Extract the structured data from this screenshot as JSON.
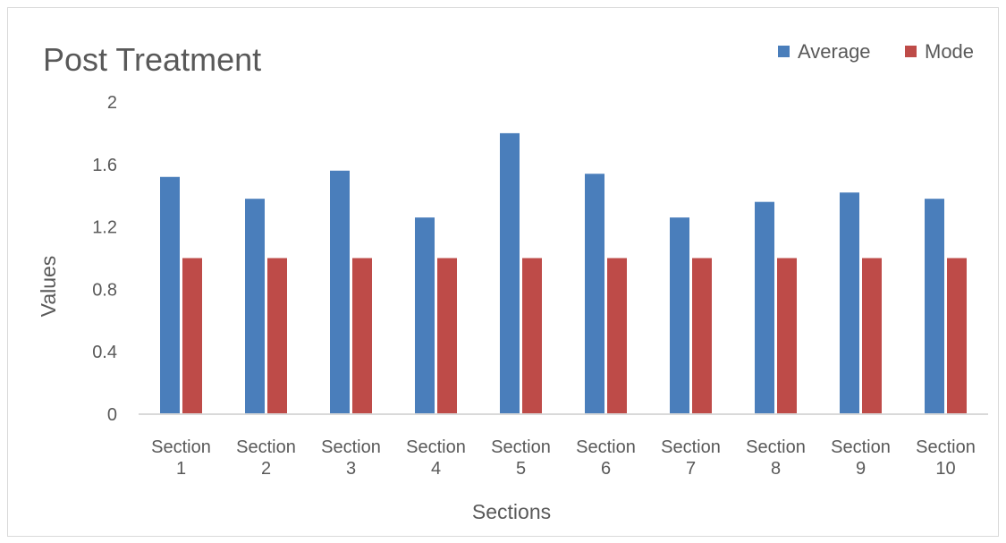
{
  "chart_data": {
    "type": "bar",
    "title": "Post Treatment",
    "xlabel": "Sections",
    "ylabel": "Values",
    "ylim": [
      0,
      2
    ],
    "yticks": [
      "0",
      "0.4",
      "0.8",
      "1.2",
      "1.6",
      "2"
    ],
    "ytick_values": [
      0,
      0.4,
      0.8,
      1.2,
      1.6,
      2
    ],
    "grid": false,
    "legend_position": "top-right",
    "categories": [
      [
        "Section",
        "1"
      ],
      [
        "Section",
        "2"
      ],
      [
        "Section",
        "3"
      ],
      [
        "Section",
        "4"
      ],
      [
        "Section",
        "5"
      ],
      [
        "Section",
        "6"
      ],
      [
        "Section",
        "7"
      ],
      [
        "Section",
        "8"
      ],
      [
        "Section",
        "9"
      ],
      [
        "Section",
        "10"
      ]
    ],
    "series": [
      {
        "name": "Average",
        "color": "#4a7ebb",
        "values": [
          1.52,
          1.38,
          1.56,
          1.26,
          1.8,
          1.54,
          1.26,
          1.36,
          1.42,
          1.38
        ]
      },
      {
        "name": "Mode",
        "color": "#be4b48",
        "values": [
          1,
          1,
          1,
          1,
          1,
          1,
          1,
          1,
          1,
          1
        ]
      }
    ]
  }
}
